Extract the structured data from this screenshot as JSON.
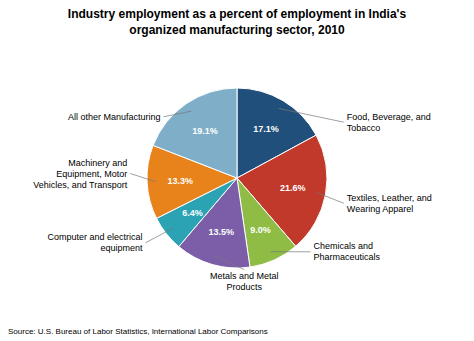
{
  "chart_data": {
    "type": "pie",
    "title": "Industry employment as a percent of employment in India's\norganized manufacturing sector, 2010",
    "categories": [
      "Food, Beverage, and\nTobacco",
      "Textiles, Leather, and\nWearing Apparel",
      "Chemicals and\nPharmaceuticals",
      "Metals and Metal\nProducts",
      "Computer and electrical\nequipment",
      "Machinery and\nEquipment, Motor\nVehicles, and Transport",
      "All other Manufacturing"
    ],
    "values": [
      17.1,
      21.6,
      9.0,
      13.5,
      6.4,
      13.3,
      19.1
    ],
    "value_labels": [
      "17.1%",
      "21.6%",
      "9.0%",
      "13.5%",
      "6.4%",
      "13.3%",
      "19.1%"
    ],
    "colors": [
      "#1f4f7a",
      "#c0392b",
      "#8fbc45",
      "#7b5ea7",
      "#2ba3b4",
      "#e8821a",
      "#7fafc8"
    ],
    "data_labels": true,
    "annotations": [
      "Source: U.S. Bureau of Labor Statistics, International Labor Comparisons"
    ]
  }
}
